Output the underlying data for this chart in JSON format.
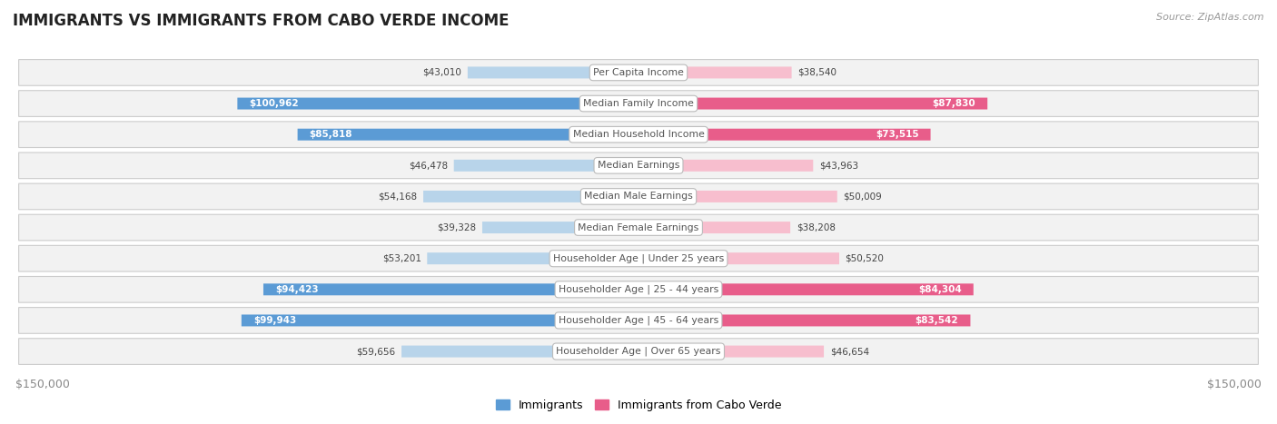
{
  "title": "IMMIGRANTS VS IMMIGRANTS FROM CABO VERDE INCOME",
  "source": "Source: ZipAtlas.com",
  "categories": [
    "Per Capita Income",
    "Median Family Income",
    "Median Household Income",
    "Median Earnings",
    "Median Male Earnings",
    "Median Female Earnings",
    "Householder Age | Under 25 years",
    "Householder Age | 25 - 44 years",
    "Householder Age | 45 - 64 years",
    "Householder Age | Over 65 years"
  ],
  "immigrants": [
    43010,
    100962,
    85818,
    46478,
    54168,
    39328,
    53201,
    94423,
    99943,
    59656
  ],
  "cabo_verde": [
    38540,
    87830,
    73515,
    43963,
    50009,
    38208,
    50520,
    84304,
    83542,
    46654
  ],
  "immigrants_labels": [
    "$43,010",
    "$100,962",
    "$85,818",
    "$46,478",
    "$54,168",
    "$39,328",
    "$53,201",
    "$94,423",
    "$99,943",
    "$59,656"
  ],
  "cabo_verde_labels": [
    "$38,540",
    "$87,830",
    "$73,515",
    "$43,963",
    "$50,009",
    "$38,208",
    "$50,520",
    "$84,304",
    "$83,542",
    "$46,654"
  ],
  "max_val": 150000,
  "bar_color_imm_light": "#b8d4ea",
  "bar_color_imm_dark": "#5b9bd5",
  "bar_color_cabo_light": "#f7bece",
  "bar_color_cabo_dark": "#e85d8a",
  "background_color": "#ffffff",
  "row_bg_color": "#f0f0f0",
  "row_border_color": "#d8d8d8",
  "category_text_color": "#555555",
  "title_color": "#222222",
  "legend_imm_color": "#5b9bd5",
  "legend_cabo_color": "#e85d8a",
  "dark_threshold": 70000,
  "white_label_threshold": 70000
}
